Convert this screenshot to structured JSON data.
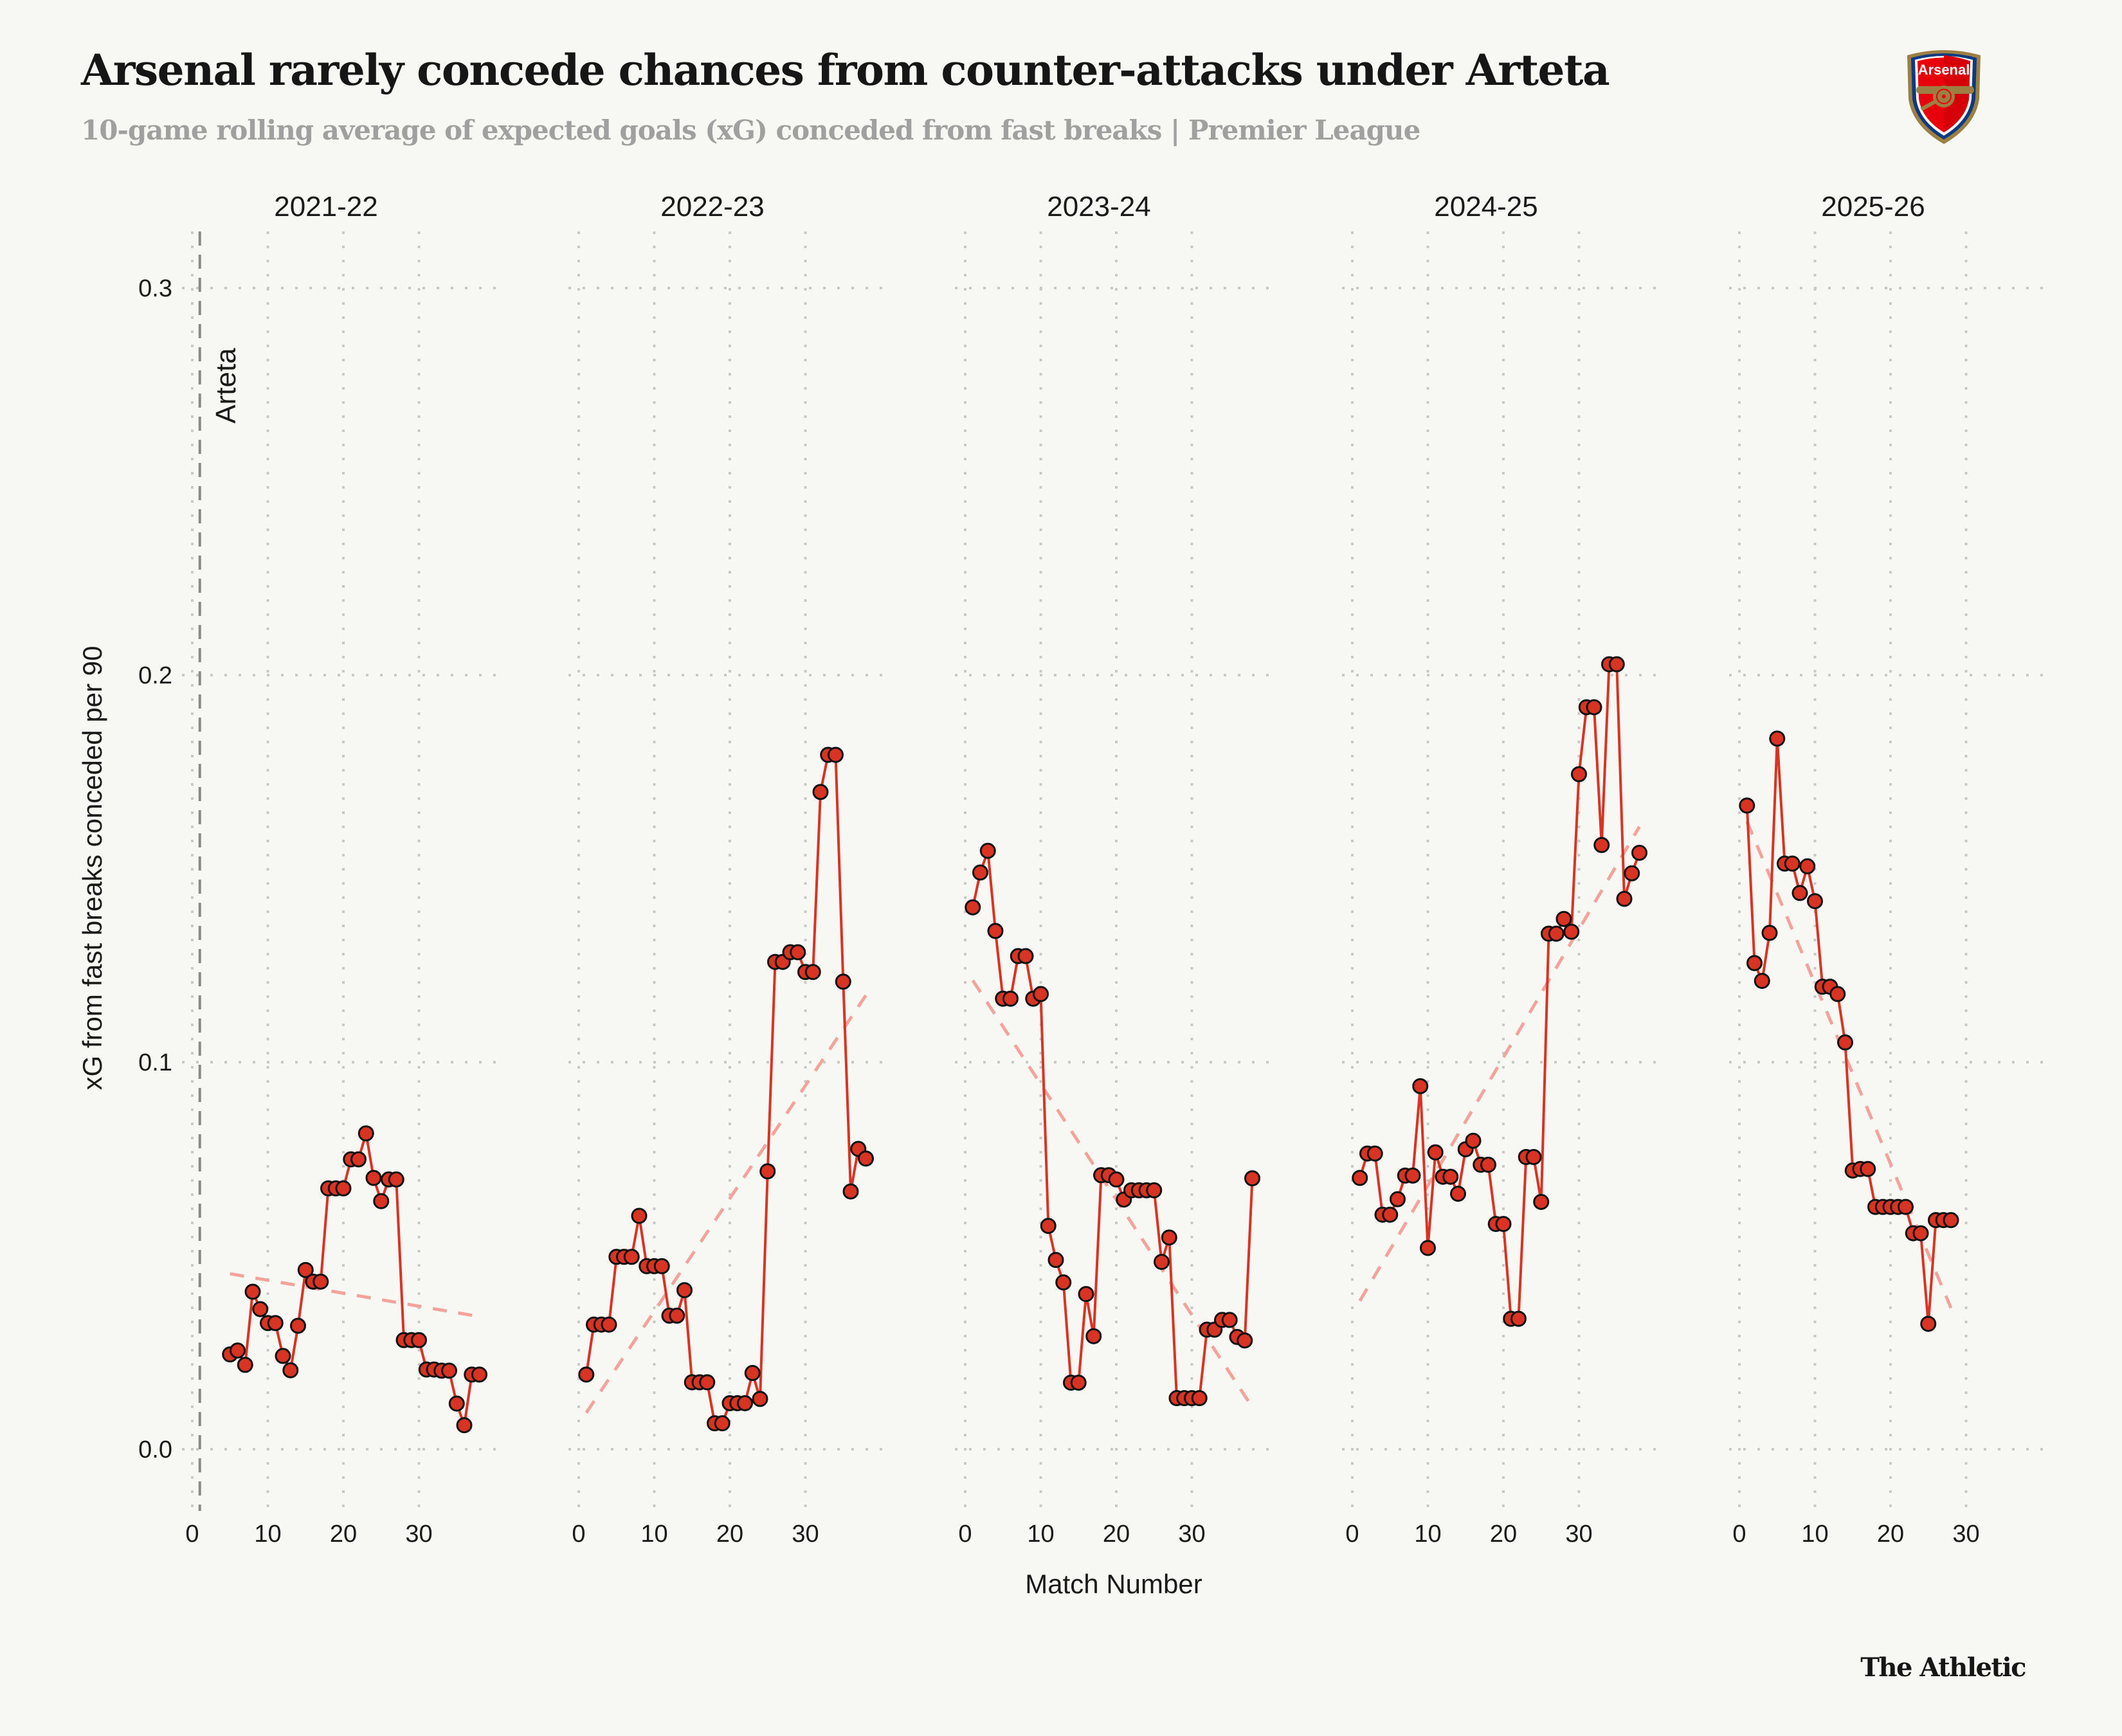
{
  "header": {
    "title": "Arsenal rarely concede chances from counter-attacks under Arteta",
    "subtitle": "10-game rolling average of expected goals (xG) conceded from fast breaks | Premier League",
    "logo_text": "Arsenal"
  },
  "footer": {
    "brand": "The Athletic"
  },
  "colors": {
    "background": "#f7f7f3",
    "line": "#d93324",
    "point_fill": "#d93324",
    "point_stroke": "#111111",
    "trend": "#f4a29c",
    "grid": "#c8c8c8",
    "arteta_line": "#8a8a8a"
  },
  "chart_data": {
    "type": "line",
    "title": "Arsenal rarely concede chances from counter-attacks under Arteta",
    "subtitle": "10-game rolling average of expected goals (xG) conceded from fast breaks | Premier League",
    "xlabel": "Match Number",
    "ylabel": "xG from fast breaks conceded per 90",
    "ylim": [
      -0.015,
      0.315
    ],
    "xlim": [
      -1,
      40
    ],
    "yticks": [
      0.0,
      0.1,
      0.2,
      0.3
    ],
    "ytick_labels": [
      "0.0",
      "0.1",
      "0.2",
      "0.3"
    ],
    "xticks": [
      0,
      10,
      20,
      30
    ],
    "xtick_labels": [
      "0",
      "10",
      "20",
      "30"
    ],
    "grid": true,
    "trendline": "linear fit per season (dashed)",
    "annotation": {
      "text": "Arteta",
      "x": 1,
      "panel": "2021-22"
    },
    "panels": [
      {
        "season": "2021-22",
        "x_start": 5,
        "values": [
          0.0245,
          0.0255,
          0.0218,
          0.0407,
          0.0362,
          0.0326,
          0.0326,
          0.0241,
          0.0204,
          0.0319,
          0.0463,
          0.0433,
          0.0433,
          0.0674,
          0.0674,
          0.0674,
          0.0749,
          0.0749,
          0.0816,
          0.0701,
          0.0641,
          0.0697,
          0.0697,
          0.0282,
          0.0282,
          0.0282,
          0.0206,
          0.0206,
          0.0203,
          0.0203,
          0.0118,
          0.0062,
          0.0193,
          0.0193
        ]
      },
      {
        "season": "2022-23",
        "x_start": 1,
        "values": [
          0.0193,
          0.0322,
          0.0322,
          0.0322,
          0.0497,
          0.0497,
          0.0497,
          0.0603,
          0.0473,
          0.0473,
          0.0473,
          0.0345,
          0.0345,
          0.0411,
          0.0173,
          0.0173,
          0.0173,
          0.0067,
          0.0067,
          0.0119,
          0.0119,
          0.0119,
          0.0197,
          0.013,
          0.0718,
          0.1259,
          0.1259,
          0.1284,
          0.1284,
          0.1233,
          0.1233,
          0.1698,
          0.1794,
          0.1794,
          0.1208,
          0.0666,
          0.0776,
          0.0751
        ]
      },
      {
        "season": "2023-24",
        "x_start": 1,
        "values": [
          0.14,
          0.149,
          0.1546,
          0.1339,
          0.1164,
          0.1164,
          0.1274,
          0.1274,
          0.1164,
          0.1176,
          0.0577,
          0.0489,
          0.0431,
          0.0172,
          0.0172,
          0.0401,
          0.0292,
          0.0708,
          0.0708,
          0.0697,
          0.0645,
          0.0669,
          0.0669,
          0.0669,
          0.0669,
          0.0484,
          0.0547,
          0.0132,
          0.0132,
          0.0132,
          0.0132,
          0.0309,
          0.0309,
          0.0334,
          0.0334,
          0.029,
          0.0281,
          0.07
        ]
      },
      {
        "season": "2024-25",
        "x_start": 1,
        "values": [
          0.0701,
          0.0764,
          0.0764,
          0.0606,
          0.0606,
          0.0646,
          0.0707,
          0.0707,
          0.0938,
          0.052,
          0.0767,
          0.0704,
          0.0704,
          0.066,
          0.0775,
          0.0797,
          0.0735,
          0.0735,
          0.0582,
          0.0582,
          0.0337,
          0.0337,
          0.0755,
          0.0755,
          0.0639,
          0.1332,
          0.1332,
          0.137,
          0.1337,
          0.1744,
          0.1917,
          0.1917,
          0.1561,
          0.2028,
          0.2028,
          0.1422,
          0.1488,
          0.1541
        ]
      },
      {
        "season": "2025-26",
        "x_start": 1,
        "values": [
          0.1663,
          0.1256,
          0.121,
          0.1334,
          0.1836,
          0.1513,
          0.1513,
          0.1437,
          0.1506,
          0.1416,
          0.1195,
          0.1195,
          0.1176,
          0.1051,
          0.072,
          0.0724,
          0.0724,
          0.0626,
          0.0626,
          0.0626,
          0.0626,
          0.0626,
          0.0558,
          0.0558,
          0.0324,
          0.0592,
          0.0592,
          0.0592
        ]
      }
    ]
  }
}
